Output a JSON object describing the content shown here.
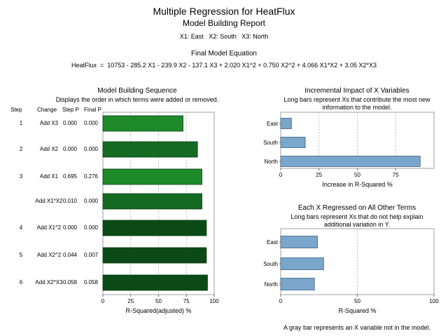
{
  "report": {
    "title": "Multiple Regression for HeatFlux",
    "subtitle": "Model Building Report",
    "variables": "X1: East   X2: South   X3: North",
    "equation_title": "Final Model Equation",
    "equation": "HeatFlux  =  10753 - 285.2 X1 - 239.9 X2 - 137.1 X3 + 2.020 X1^2 + 0.750 X2^2 + 4.066 X1*X2 + 3.05 X2*X3",
    "footnote": "A gray bar represents an X variable not in the model."
  },
  "sequence": {
    "title": "Model Building Sequence",
    "desc": "Displays the order in which terms were added or removed.",
    "headers": {
      "step": "Step",
      "change": "Change",
      "stepp": "Step P",
      "finalp": "Final P"
    },
    "rows": [
      {
        "step": "1",
        "change": "Add X3",
        "stepp": "0.000",
        "finalp": "0.000"
      },
      {
        "step": "2",
        "change": "Add X2",
        "stepp": "0.000",
        "finalp": "0.000"
      },
      {
        "step": "3",
        "change": "Add X1",
        "stepp": "0.695",
        "finalp": "0.276"
      },
      {
        "step": "",
        "change": "Add X1*X2",
        "stepp": "0.010",
        "finalp": "0.000"
      },
      {
        "step": "4",
        "change": "Add X1^2",
        "stepp": "0.000",
        "finalp": "0.000"
      },
      {
        "step": "5",
        "change": "Add X2^2",
        "stepp": "0.044",
        "finalp": "0.007"
      },
      {
        "step": "6",
        "change": "Add X2*X3",
        "stepp": "0.058",
        "finalp": "0.058"
      }
    ]
  },
  "impact": {
    "title": "Incremental Impact of X Variables",
    "desc1": "Long bars represent Xs that contribute the most new",
    "desc2": "information to the model."
  },
  "regressed": {
    "title": "Each X Regressed on All Other Terms",
    "desc1": "Long bars represent Xs that do not help explain",
    "desc2": "additional variation in Y."
  },
  "colors": {
    "bar_light": "#1e8a2a",
    "bar_mid": "#116a1e",
    "bar_dark": "#0b4a16",
    "bar_blue": "#7aa6cc",
    "grid": "#b0b0b0"
  },
  "chart_data": [
    {
      "type": "bar",
      "orientation": "horizontal",
      "categories": [
        "Add X3",
        "Add X2",
        "Add X1",
        "Add X1*X2",
        "Add X1^2",
        "Add X2^2",
        "Add X2*X3"
      ],
      "values": [
        72,
        85,
        89,
        89,
        93,
        93,
        94
      ],
      "xlabel": "R-Squared(adjusted) %",
      "xlim": [
        0,
        100
      ],
      "xticks": [
        "0",
        "25",
        "50",
        "75",
        "100"
      ],
      "grid": true
    },
    {
      "type": "bar",
      "orientation": "horizontal",
      "categories": [
        "East",
        "South",
        "North"
      ],
      "values": [
        7,
        16,
        91
      ],
      "xlabel": "Increase in R-Squared %",
      "xlim": [
        0,
        100
      ],
      "xticks": [
        "0",
        "25",
        "50",
        "75"
      ],
      "grid": true
    },
    {
      "type": "bar",
      "orientation": "horizontal",
      "categories": [
        "East",
        "South",
        "North"
      ],
      "values": [
        24,
        28,
        22
      ],
      "xlabel": "R-Squared %",
      "xlim": [
        0,
        100
      ],
      "xticks": [
        "0",
        "50",
        "100"
      ],
      "grid": true
    }
  ]
}
